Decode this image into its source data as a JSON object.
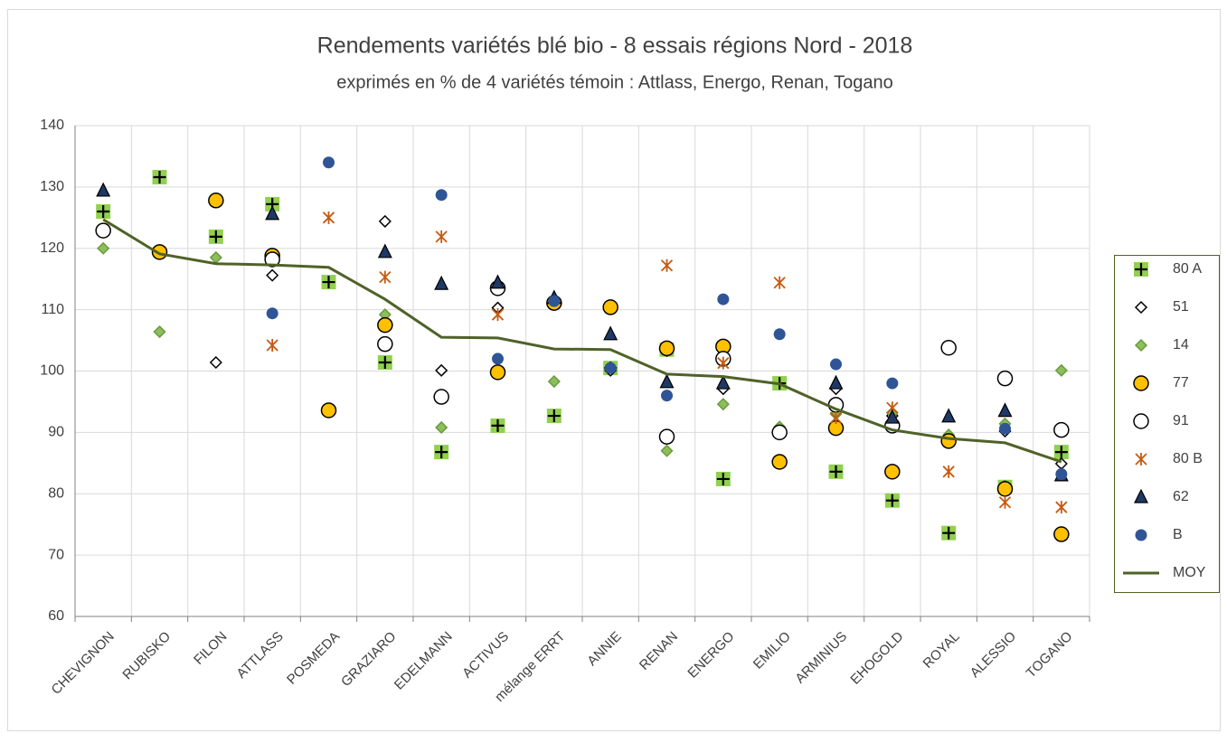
{
  "chart_data": {
    "type": "scatter",
    "title": "Rendements variétés blé bio - 8 essais régions Nord - 2018",
    "subtitle": "exprimés en % de 4 variétés témoin : Attlass, Energo, Renan, Togano",
    "categories": [
      "CHEVIGNON",
      "RUBISKO",
      "FILON",
      "ATTLASS",
      "POSMEDA",
      "GRAZIARO",
      "EDELMANN",
      "ACTIVUS",
      "mélange ERRT",
      "ANNIE",
      "RENAN",
      "ENERGO",
      "EMILIO",
      "ARMINIUS",
      "EHOGOLD",
      "ROYAL",
      "ALESSIO",
      "TOGANO"
    ],
    "ylim": [
      60,
      140
    ],
    "yticks": [
      60,
      70,
      80,
      90,
      100,
      110,
      120,
      130,
      140
    ],
    "grid": true,
    "legend": "right",
    "series": [
      {
        "name": "80 A",
        "marker": "plus-square",
        "color": "#92d050",
        "values": [
          126.0,
          131.6,
          121.9,
          127.2,
          114.5,
          101.4,
          86.8,
          91.1,
          92.7,
          100.5,
          103.5,
          82.4,
          98.0,
          83.6,
          78.9,
          73.6,
          81.1,
          86.8
        ]
      },
      {
        "name": "51",
        "marker": "diamond",
        "color": "#ffffff",
        "values": [
          null,
          null,
          101.4,
          115.6,
          null,
          124.4,
          100.1,
          110.3,
          null,
          100.1,
          103.3,
          97.1,
          null,
          97.1,
          92.7,
          null,
          90.2,
          84.9
        ]
      },
      {
        "name": "14",
        "marker": "diamond",
        "color": "#8cbf5a",
        "values": [
          120.0,
          106.4,
          118.5,
          null,
          null,
          109.2,
          90.8,
          null,
          98.3,
          null,
          87.0,
          94.6,
          90.9,
          93.0,
          93.2,
          89.6,
          91.4,
          100.1
        ]
      },
      {
        "name": "77",
        "marker": "circle",
        "color": "#ffc000",
        "values": [
          null,
          119.4,
          127.8,
          118.8,
          93.6,
          107.5,
          null,
          99.8,
          111.1,
          110.4,
          103.7,
          104.0,
          85.2,
          90.7,
          83.6,
          88.6,
          80.8,
          73.4
        ]
      },
      {
        "name": "91",
        "marker": "circle",
        "color": "#ffffff",
        "values": [
          122.9,
          null,
          null,
          118.2,
          null,
          104.4,
          95.8,
          113.5,
          null,
          null,
          89.3,
          102.0,
          90.0,
          94.5,
          91.1,
          103.8,
          98.8,
          90.4
        ]
      },
      {
        "name": "80 B",
        "marker": "asterisk",
        "color": "#c55a11",
        "values": [
          null,
          null,
          null,
          104.2,
          125.0,
          115.3,
          121.9,
          109.2,
          null,
          null,
          117.2,
          101.3,
          114.4,
          92.4,
          94.0,
          83.6,
          78.6,
          77.8
        ]
      },
      {
        "name": "62",
        "marker": "triangle",
        "color": "#1f3864",
        "values": [
          129.4,
          null,
          null,
          125.6,
          null,
          119.4,
          114.2,
          114.4,
          111.9,
          106.0,
          98.2,
          98.0,
          null,
          98.0,
          92.4,
          92.6,
          93.5,
          83.0
        ]
      },
      {
        "name": "B",
        "marker": "dot",
        "color": "#2f5597",
        "values": [
          null,
          null,
          null,
          109.4,
          134.0,
          null,
          128.7,
          102.0,
          111.4,
          100.5,
          96.0,
          111.7,
          106.0,
          101.1,
          98.0,
          null,
          90.6,
          83.2
        ]
      },
      {
        "name": "MOY",
        "marker": "line",
        "color": "#4f6228",
        "values": [
          124.7,
          119.1,
          117.5,
          117.3,
          116.9,
          111.7,
          105.5,
          105.4,
          103.6,
          103.5,
          99.5,
          99.1,
          97.9,
          93.8,
          90.4,
          89.0,
          88.3,
          85.2
        ]
      }
    ]
  }
}
